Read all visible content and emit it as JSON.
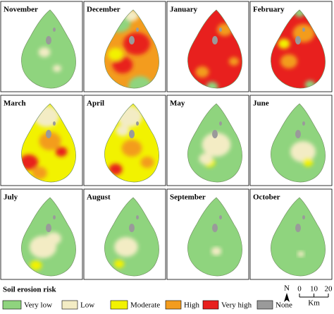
{
  "panels": [
    {
      "label": "November"
    },
    {
      "label": "December"
    },
    {
      "label": "January"
    },
    {
      "label": "February"
    },
    {
      "label": "March"
    },
    {
      "label": "April"
    },
    {
      "label": "May"
    },
    {
      "label": "June"
    },
    {
      "label": "July"
    },
    {
      "label": "August"
    },
    {
      "label": "September"
    },
    {
      "label": "October"
    }
  ],
  "legend": {
    "title": "Soil erosion risk",
    "items": [
      {
        "label": "Very low",
        "color": "#8fd47e"
      },
      {
        "label": "Low",
        "color": "#f3ecc4"
      },
      {
        "label": "Moderate",
        "color": "#f2f200"
      },
      {
        "label": "High",
        "color": "#f39c1e"
      },
      {
        "label": "Very high",
        "color": "#e8201e"
      },
      {
        "label": "None",
        "color": "#9a9a9a"
      }
    ]
  },
  "scale": {
    "ticks": [
      0,
      10,
      20
    ],
    "unit": "Km"
  },
  "north": "N"
}
